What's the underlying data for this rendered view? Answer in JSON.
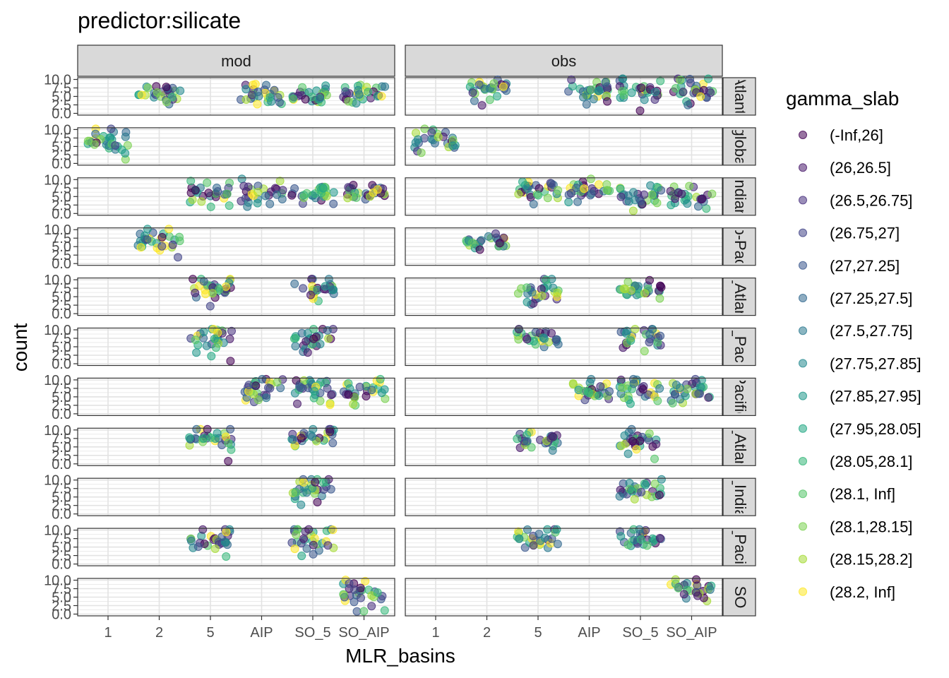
{
  "chart_data": {
    "type": "scatter",
    "title": "predictor:silicate",
    "xlabel": "MLR_basins",
    "ylabel": "count",
    "x_categories": [
      "1",
      "2",
      "5",
      "AIP",
      "SO_5",
      "SO_AIP"
    ],
    "y_ticks": [
      "0.0",
      "2.5",
      "5.0",
      "7.5",
      "10.0"
    ],
    "ylim": [
      0,
      10
    ],
    "columns": [
      "mod",
      "obs"
    ],
    "rows": [
      "Atlantic",
      "global",
      "Indian",
      "Indo-Pacific",
      "N_Atlantic",
      "N_Pacific",
      "Pacific",
      "S_Atlantic",
      "S_Indian",
      "S_Pacific",
      "SO"
    ],
    "row_strip_text": [
      "Atlanti",
      "globa",
      "Indian",
      "o-Pac",
      "_Atlan",
      "_Paci",
      "Pacific",
      "_Atlan",
      "_India",
      "_Pacif",
      "SO"
    ],
    "legend": {
      "title": "gamma_slab",
      "position": "right",
      "items": [
        {
          "label": "(-Inf,26]",
          "color": "#440154"
        },
        {
          "label": "(26,26.5]",
          "color": "#481A6C"
        },
        {
          "label": "(26.5,26.75]",
          "color": "#472F7D"
        },
        {
          "label": "(26.75,27]",
          "color": "#414487"
        },
        {
          "label": "(27,27.25]",
          "color": "#39568C"
        },
        {
          "label": "(27.25,27.5]",
          "color": "#31688E"
        },
        {
          "label": "(27.5,27.75]",
          "color": "#2A788E"
        },
        {
          "label": "(27.75,27.85]",
          "color": "#23888E"
        },
        {
          "label": "(27.85,27.95]",
          "color": "#1F988B"
        },
        {
          "label": "(27.95,28.05]",
          "color": "#22A884"
        },
        {
          "label": "(28.05,28.1]",
          "color": "#35B779"
        },
        {
          "label": "(28.1, Inf]",
          "color": "#54C568"
        },
        {
          "label": "(28.1,28.15]",
          "color": "#7AD151"
        },
        {
          "label": "(28.15,28.2]",
          "color": "#A5DB36"
        },
        {
          "label": "(28.2, Inf]",
          "color": "#FDE725"
        }
      ]
    },
    "panels": [
      {
        "row": 0,
        "col": 0,
        "groups": [
          {
            "x": 2,
            "n": 28,
            "yc": 6.0,
            "ys": 1.6
          },
          {
            "x": 4,
            "n": 28,
            "yc": 6.0,
            "ys": 1.6
          },
          {
            "x": 5,
            "n": 28,
            "yc": 5.0,
            "ys": 1.5
          },
          {
            "x": 6,
            "n": 28,
            "yc": 6.0,
            "ys": 1.6
          }
        ]
      },
      {
        "row": 0,
        "col": 1,
        "groups": [
          {
            "x": 2,
            "n": 28,
            "yc": 6.5,
            "ys": 1.8
          },
          {
            "x": 4,
            "n": 30,
            "yc": 7.0,
            "ys": 2.0
          },
          {
            "x": 5,
            "n": 30,
            "yc": 6.5,
            "ys": 1.8
          },
          {
            "x": 6,
            "n": 30,
            "yc": 6.5,
            "ys": 2.0
          }
        ]
      },
      {
        "row": 1,
        "col": 0,
        "groups": [
          {
            "x": 1,
            "n": 30,
            "yc": 7.0,
            "ys": 2.0
          }
        ]
      },
      {
        "row": 1,
        "col": 1,
        "groups": [
          {
            "x": 1,
            "n": 26,
            "yc": 7.0,
            "ys": 2.2
          }
        ]
      },
      {
        "row": 2,
        "col": 0,
        "groups": [
          {
            "x": 3,
            "n": 28,
            "yc": 5.5,
            "ys": 2.2
          },
          {
            "x": 4,
            "n": 28,
            "yc": 6.0,
            "ys": 2.0
          },
          {
            "x": 5,
            "n": 28,
            "yc": 6.0,
            "ys": 1.5
          },
          {
            "x": 6,
            "n": 28,
            "yc": 6.0,
            "ys": 1.5
          }
        ]
      },
      {
        "row": 2,
        "col": 1,
        "groups": [
          {
            "x": 3,
            "n": 28,
            "yc": 7.0,
            "ys": 1.6
          },
          {
            "x": 4,
            "n": 28,
            "yc": 7.0,
            "ys": 1.6
          },
          {
            "x": 5,
            "n": 28,
            "yc": 5.5,
            "ys": 1.8
          },
          {
            "x": 6,
            "n": 28,
            "yc": 5.5,
            "ys": 1.8
          }
        ]
      },
      {
        "row": 3,
        "col": 0,
        "groups": [
          {
            "x": 2,
            "n": 30,
            "yc": 6.5,
            "ys": 2.0
          }
        ]
      },
      {
        "row": 3,
        "col": 1,
        "groups": [
          {
            "x": 2,
            "n": 26,
            "yc": 6.0,
            "ys": 1.2
          }
        ]
      },
      {
        "row": 4,
        "col": 0,
        "groups": [
          {
            "x": 3,
            "n": 30,
            "yc": 7.0,
            "ys": 2.3
          },
          {
            "x": 5,
            "n": 26,
            "yc": 7.5,
            "ys": 1.8
          }
        ]
      },
      {
        "row": 4,
        "col": 1,
        "groups": [
          {
            "x": 3,
            "n": 28,
            "yc": 6.5,
            "ys": 2.2
          },
          {
            "x": 5,
            "n": 28,
            "yc": 7.5,
            "ys": 1.6
          }
        ]
      },
      {
        "row": 5,
        "col": 0,
        "groups": [
          {
            "x": 3,
            "n": 28,
            "yc": 7.0,
            "ys": 2.2
          },
          {
            "x": 5,
            "n": 28,
            "yc": 7.5,
            "ys": 1.6
          }
        ]
      },
      {
        "row": 5,
        "col": 1,
        "groups": [
          {
            "x": 3,
            "n": 28,
            "yc": 7.0,
            "ys": 2.0
          },
          {
            "x": 5,
            "n": 28,
            "yc": 7.0,
            "ys": 1.8
          }
        ]
      },
      {
        "row": 6,
        "col": 0,
        "groups": [
          {
            "x": 4,
            "n": 30,
            "yc": 7.0,
            "ys": 1.8
          },
          {
            "x": 5,
            "n": 30,
            "yc": 7.0,
            "ys": 2.0
          },
          {
            "x": 6,
            "n": 28,
            "yc": 7.0,
            "ys": 2.0
          }
        ]
      },
      {
        "row": 6,
        "col": 1,
        "groups": [
          {
            "x": 4,
            "n": 30,
            "yc": 7.0,
            "ys": 2.0
          },
          {
            "x": 5,
            "n": 30,
            "yc": 7.0,
            "ys": 1.8
          },
          {
            "x": 6,
            "n": 30,
            "yc": 7.0,
            "ys": 2.0
          }
        ]
      },
      {
        "row": 7,
        "col": 0,
        "groups": [
          {
            "x": 3,
            "n": 30,
            "yc": 7.0,
            "ys": 2.2
          },
          {
            "x": 5,
            "n": 28,
            "yc": 8.0,
            "ys": 1.6
          }
        ]
      },
      {
        "row": 7,
        "col": 1,
        "groups": [
          {
            "x": 3,
            "n": 28,
            "yc": 7.5,
            "ys": 1.6
          },
          {
            "x": 5,
            "n": 28,
            "yc": 7.5,
            "ys": 1.6
          }
        ]
      },
      {
        "row": 8,
        "col": 0,
        "groups": [
          {
            "x": 5,
            "n": 30,
            "yc": 7.0,
            "ys": 2.0
          }
        ]
      },
      {
        "row": 8,
        "col": 1,
        "groups": [
          {
            "x": 5,
            "n": 28,
            "yc": 7.5,
            "ys": 1.8
          }
        ]
      },
      {
        "row": 9,
        "col": 0,
        "groups": [
          {
            "x": 3,
            "n": 30,
            "yc": 7.0,
            "ys": 2.0
          },
          {
            "x": 5,
            "n": 30,
            "yc": 7.0,
            "ys": 2.3
          }
        ]
      },
      {
        "row": 9,
        "col": 1,
        "groups": [
          {
            "x": 3,
            "n": 28,
            "yc": 7.5,
            "ys": 1.8
          },
          {
            "x": 5,
            "n": 28,
            "yc": 7.5,
            "ys": 1.8
          }
        ]
      },
      {
        "row": 10,
        "col": 0,
        "groups": [
          {
            "x": 6,
            "n": 30,
            "yc": 6.5,
            "ys": 2.2
          }
        ]
      },
      {
        "row": 10,
        "col": 1,
        "groups": [
          {
            "x": 6,
            "n": 26,
            "yc": 7.0,
            "ys": 2.0
          }
        ]
      }
    ]
  }
}
